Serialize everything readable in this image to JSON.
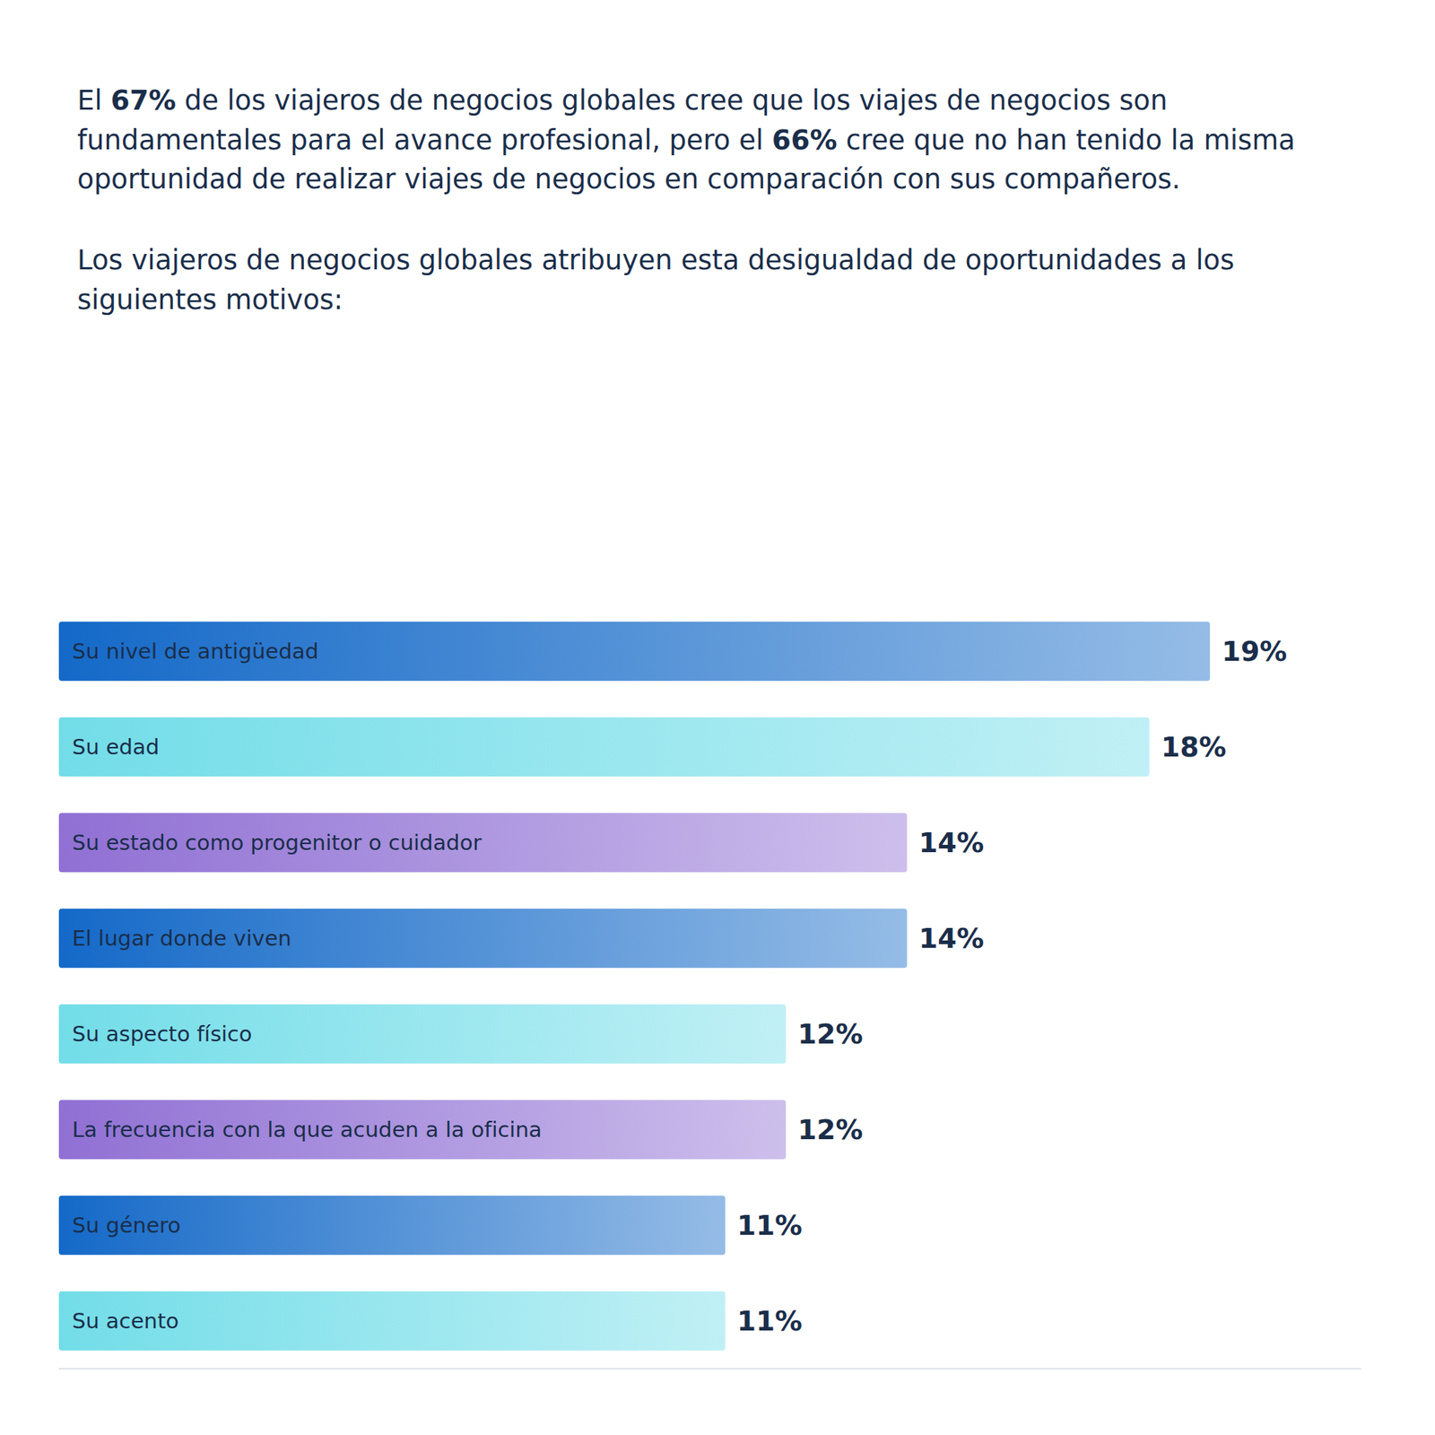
{
  "chart_data": {
    "type": "bar",
    "orientation": "horizontal",
    "title": "El 67% de los viajeros de negocios globales cree que los viajes de negocios son fundamentales para el avance profesional, pero el 66% cree que no han tenido la misma oportunidad de realizar viajes de negocios en comparación con sus compañeros.",
    "subtitle": "Los viajeros de negocios globales atribuyen esta desigualdad de oportunidades a los siguientes motivos:",
    "categories": [
      "Su nivel de antigüedad",
      "Su edad",
      "Su estado como progenitor o cuidador",
      "El lugar donde viven",
      "Su aspecto físico",
      "La frecuencia con la que acuden a la oficina",
      "Su género",
      "Su acento"
    ],
    "values": [
      19,
      18,
      14,
      14,
      12,
      12,
      11,
      11
    ],
    "value_labels": [
      "19%",
      "18%",
      "14%",
      "14%",
      "12%",
      "12%",
      "11%",
      "11%"
    ],
    "colors": [
      "#1469c8",
      "#72dde8",
      "#9070d4",
      "#1469c8",
      "#72dde8",
      "#9070d4",
      "#1469c8",
      "#72dde8"
    ],
    "xlim": [
      0,
      21.5
    ],
    "data_labels": true,
    "tick_labels": false,
    "grid": false
  }
}
